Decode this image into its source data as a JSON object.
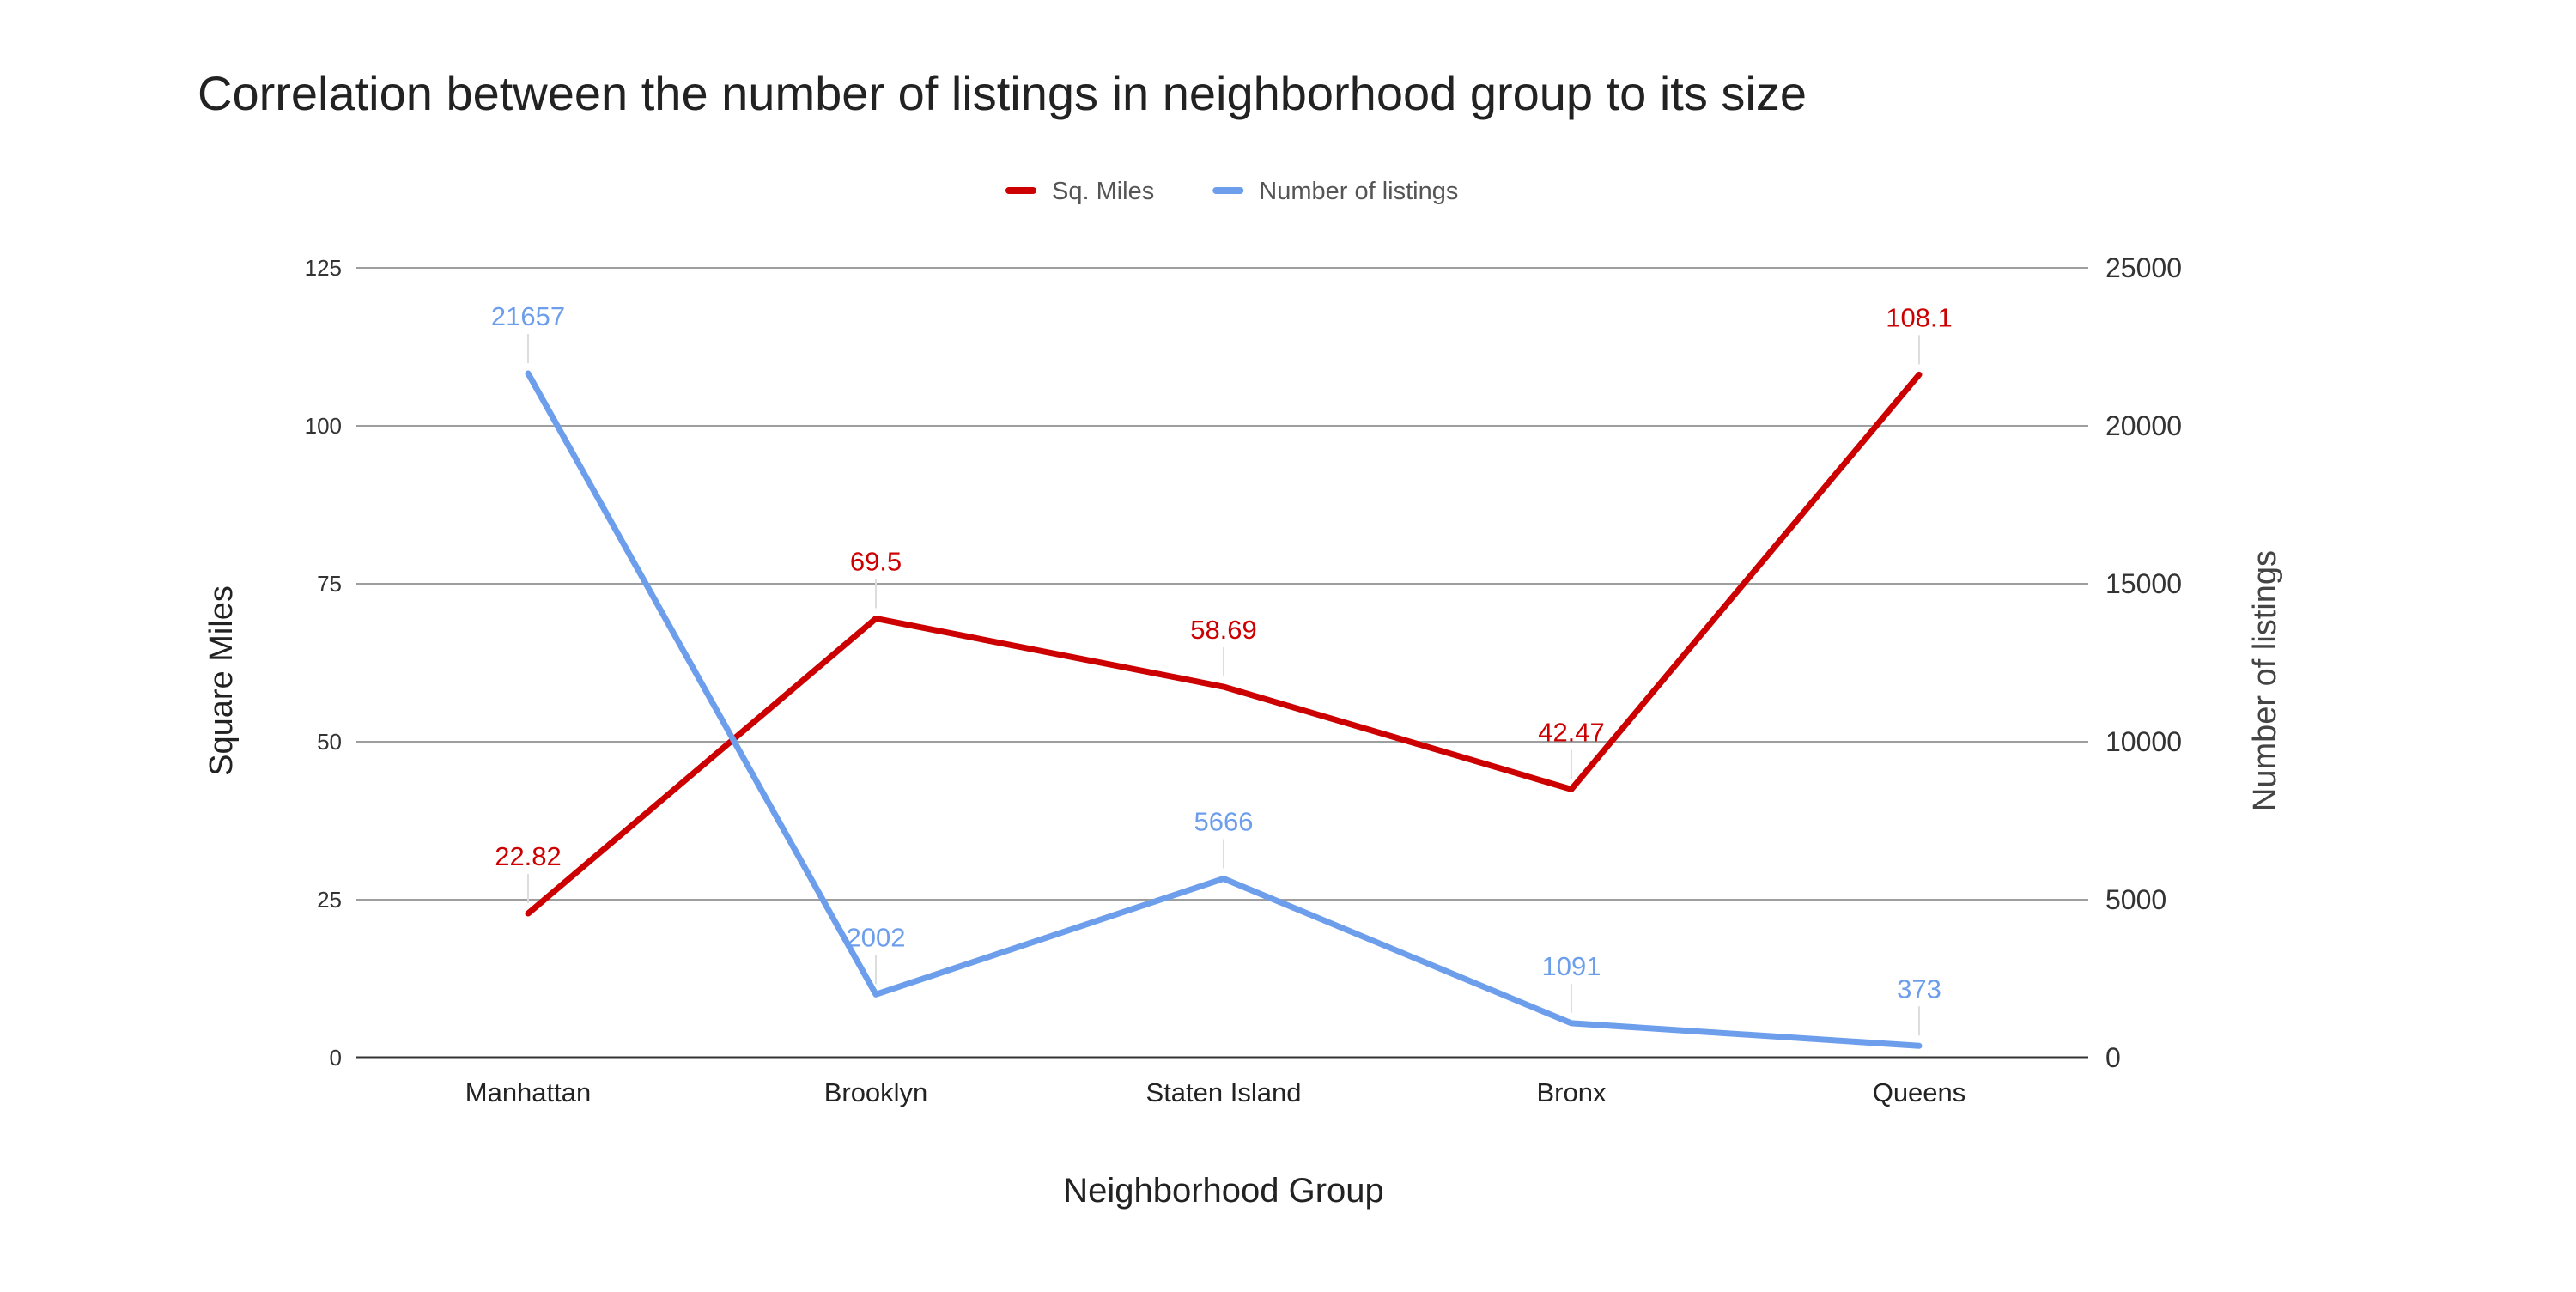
{
  "chart_data": {
    "type": "line",
    "title": "Correlation between the number of listings in neighborhood group to its size",
    "xlabel": "Neighborhood Group",
    "ylabel": "Square Miles",
    "y2label": "Number of listings",
    "categories": [
      "Manhattan",
      "Brooklyn",
      "Staten Island",
      "Bronx",
      "Queens"
    ],
    "series": [
      {
        "name": "Sq. Miles",
        "axis": "left",
        "color": "#cc0000",
        "values": [
          22.82,
          69.5,
          58.69,
          42.47,
          108.1
        ],
        "labels": [
          "22.82",
          "69.5",
          "58.69",
          "42.47",
          "108.1"
        ]
      },
      {
        "name": "Number of listings",
        "axis": "right",
        "color": "#6d9eeb",
        "values": [
          21657,
          2002,
          5666,
          1091,
          373
        ],
        "labels": [
          "21657",
          "2002",
          "5666",
          "1091",
          "373"
        ]
      }
    ],
    "ylim": [
      0,
      125
    ],
    "y2lim": [
      0,
      25000
    ],
    "yticks": [
      0,
      25,
      50,
      75,
      100,
      125
    ],
    "y2ticks": [
      0,
      5000,
      10000,
      15000,
      20000,
      25000
    ],
    "legend": "top-center",
    "grid": true
  }
}
